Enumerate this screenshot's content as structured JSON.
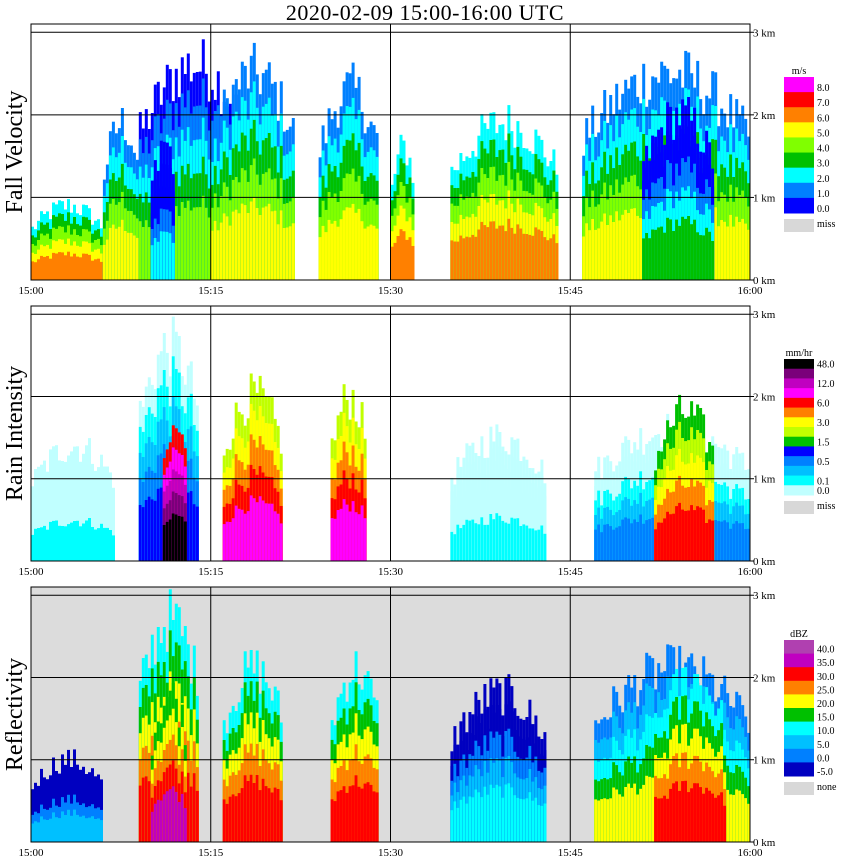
{
  "title": "2020-02-09   15:00-16:00 UTC",
  "chart_data": [
    {
      "type": "heatmap",
      "panel_label": "Fall Velocity",
      "x_ticks": [
        "15:00",
        "15:15",
        "15:30",
        "15:45",
        "16:00"
      ],
      "y_ticks": [
        "0 km",
        "1 km",
        "2 km",
        "3 km"
      ],
      "xlim": [
        "15:00",
        "16:00"
      ],
      "ylim_km": [
        0,
        3
      ],
      "grid": true,
      "colorbar": {
        "unit": "m/s",
        "levels": [
          {
            "label": "8.0",
            "color": "#ff00ff"
          },
          {
            "label": "7.0",
            "color": "#ff0000"
          },
          {
            "label": "6.0",
            "color": "#ff8000"
          },
          {
            "label": "5.0",
            "color": "#ffff00"
          },
          {
            "label": "4.0",
            "color": "#80ff00"
          },
          {
            "label": "3.0",
            "color": "#00c000"
          },
          {
            "label": "2.0",
            "color": "#00ffff"
          },
          {
            "label": "1.0",
            "color": "#0080ff"
          },
          {
            "label": "0.0",
            "color": "#0000ff"
          }
        ],
        "missing": {
          "label": "miss",
          "color": "#d8d8d8"
        }
      },
      "background": "#ffffff",
      "cells": [
        {
          "t0": 0,
          "t1": 6,
          "h": 0.9,
          "c": 2
        },
        {
          "t0": 6,
          "t1": 9,
          "h": 1.9,
          "c": 3
        },
        {
          "t0": 9,
          "t1": 18,
          "h": 2.6,
          "c": 4
        },
        {
          "t0": 10,
          "t1": 12,
          "h": 1.7,
          "c": 6
        },
        {
          "t0": 15,
          "t1": 22,
          "h": 2.5,
          "c": 3
        },
        {
          "t0": 24,
          "t1": 29,
          "h": 2.3,
          "c": 3
        },
        {
          "t0": 30,
          "t1": 32,
          "h": 1.6,
          "c": 2
        },
        {
          "t0": 35,
          "t1": 44,
          "h": 1.9,
          "c": 2
        },
        {
          "t0": 46,
          "t1": 60,
          "h": 2.5,
          "c": 3
        },
        {
          "t0": 51,
          "t1": 57,
          "h": 2.0,
          "c": 5
        }
      ]
    },
    {
      "type": "heatmap",
      "panel_label": "Rain Intensity",
      "x_ticks": [
        "15:00",
        "15:15",
        "15:30",
        "15:45",
        "16:00"
      ],
      "y_ticks": [
        "0 km",
        "1 km",
        "2 km",
        "3 km"
      ],
      "xlim": [
        "15:00",
        "16:00"
      ],
      "ylim_km": [
        0,
        3
      ],
      "grid": true,
      "colorbar": {
        "unit": "mm/hr",
        "levels": [
          {
            "label": "48.0",
            "color": "#000000"
          },
          {
            "label": "",
            "color": "#7a007a"
          },
          {
            "label": "12.0",
            "color": "#c000c0"
          },
          {
            "label": "",
            "color": "#ff00ff"
          },
          {
            "label": "6.0",
            "color": "#ff0000"
          },
          {
            "label": "",
            "color": "#ff8000"
          },
          {
            "label": "3.0",
            "color": "#ffff00"
          },
          {
            "label": "",
            "color": "#c0ff00"
          },
          {
            "label": "1.5",
            "color": "#00c000"
          },
          {
            "label": "",
            "color": "#0000ff"
          },
          {
            "label": "0.5",
            "color": "#0080ff"
          },
          {
            "label": "",
            "color": "#00c0ff"
          },
          {
            "label": "0.1",
            "color": "#00ffff"
          },
          {
            "label": "0.0",
            "color": "#c0ffff"
          }
        ],
        "missing": {
          "label": "miss",
          "color": "#d8d8d8"
        }
      },
      "background": "#ffffff",
      "cells": [
        {
          "t0": 0,
          "t1": 7,
          "h": 1.4,
          "c": 12
        },
        {
          "t0": 9,
          "t1": 14,
          "h": 2.6,
          "c": 9
        },
        {
          "t0": 11,
          "t1": 13,
          "h": 1.6,
          "c": 0
        },
        {
          "t0": 16,
          "t1": 21,
          "h": 2.0,
          "c": 3
        },
        {
          "t0": 25,
          "t1": 28,
          "h": 2.0,
          "c": 3
        },
        {
          "t0": 35,
          "t1": 43,
          "h": 1.5,
          "c": 12
        },
        {
          "t0": 47,
          "t1": 60,
          "h": 1.6,
          "c": 10
        },
        {
          "t0": 52,
          "t1": 57,
          "h": 1.8,
          "c": 4
        }
      ]
    },
    {
      "type": "heatmap",
      "panel_label": "Reflectivity",
      "x_ticks": [
        "15:00",
        "15:15",
        "15:30",
        "15:45",
        "16:00"
      ],
      "y_ticks": [
        "0 km",
        "1 km",
        "2 km",
        "3 km"
      ],
      "xlim": [
        "15:00",
        "16:00"
      ],
      "ylim_km": [
        0,
        3
      ],
      "grid": true,
      "colorbar": {
        "unit": "dBZ",
        "levels": [
          {
            "label": "40.0",
            "color": "#b040b0"
          },
          {
            "label": "35.0",
            "color": "#c000c0"
          },
          {
            "label": "30.0",
            "color": "#ff0000"
          },
          {
            "label": "25.0",
            "color": "#ff8000"
          },
          {
            "label": "20.0",
            "color": "#ffff00"
          },
          {
            "label": "15.0",
            "color": "#00c000"
          },
          {
            "label": "10.0",
            "color": "#00ffff"
          },
          {
            "label": "5.0",
            "color": "#00c0ff"
          },
          {
            "label": "0.0",
            "color": "#0080ff"
          },
          {
            "label": "-5.0",
            "color": "#0000c0"
          }
        ],
        "missing": {
          "label": "none",
          "color": "#d8d8d8"
        }
      },
      "background": "#dcdcdc",
      "cells": [
        {
          "t0": 0,
          "t1": 6,
          "h": 1.0,
          "c": 7
        },
        {
          "t0": 9,
          "t1": 14,
          "h": 2.7,
          "c": 2
        },
        {
          "t0": 10,
          "t1": 13,
          "h": 1.8,
          "c": 1
        },
        {
          "t0": 16,
          "t1": 21,
          "h": 2.1,
          "c": 2
        },
        {
          "t0": 25,
          "t1": 29,
          "h": 2.1,
          "c": 2
        },
        {
          "t0": 35,
          "t1": 43,
          "h": 1.8,
          "c": 6
        },
        {
          "t0": 47,
          "t1": 60,
          "h": 2.1,
          "c": 4
        },
        {
          "t0": 52,
          "t1": 58,
          "h": 2.0,
          "c": 2
        }
      ]
    }
  ]
}
